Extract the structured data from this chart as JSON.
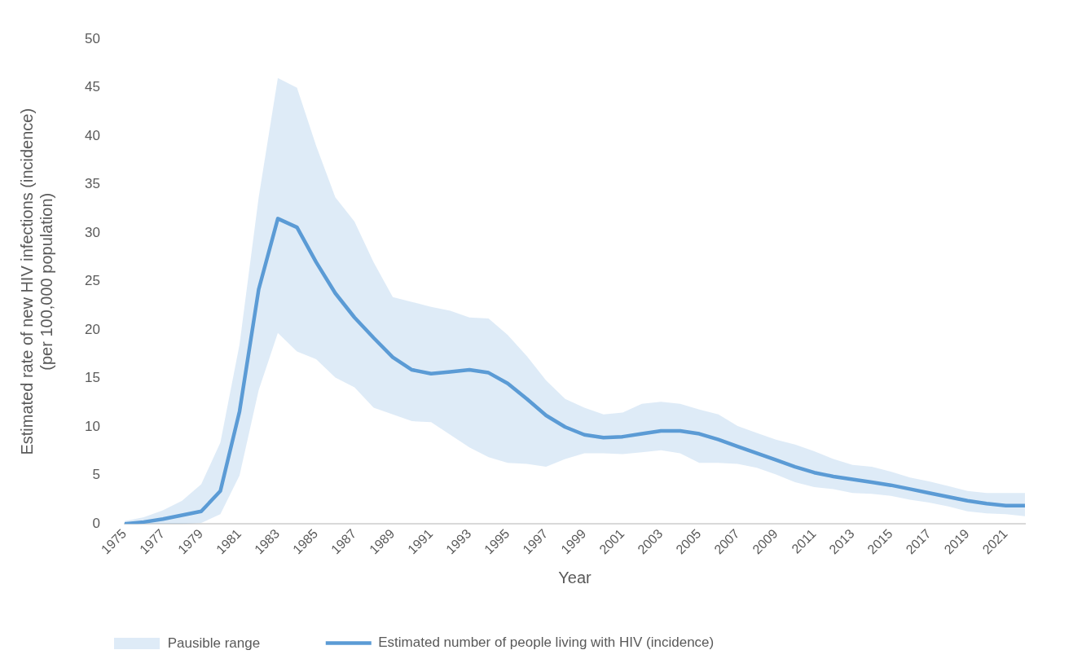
{
  "chart_data": {
    "type": "line",
    "ylabel": "Estimated rate of new HIV infections (incidence)\n(per 100,000 population)",
    "xlabel": "Year",
    "x": [
      1975,
      1976,
      1977,
      1978,
      1979,
      1980,
      1981,
      1982,
      1983,
      1984,
      1985,
      1986,
      1987,
      1988,
      1989,
      1990,
      1991,
      1992,
      1993,
      1994,
      1995,
      1996,
      1997,
      1998,
      1999,
      2000,
      2001,
      2002,
      2003,
      2004,
      2005,
      2006,
      2007,
      2008,
      2009,
      2010,
      2011,
      2012,
      2013,
      2014,
      2015,
      2016,
      2017,
      2018,
      2019,
      2020,
      2021,
      2022
    ],
    "xlim": [
      1975,
      2022
    ],
    "xticks": [
      1975,
      1977,
      1979,
      1981,
      1983,
      1985,
      1987,
      1989,
      1991,
      1993,
      1995,
      1997,
      1999,
      2001,
      2003,
      2005,
      2007,
      2009,
      2011,
      2013,
      2015,
      2017,
      2019,
      2021
    ],
    "ylim": [
      0,
      50
    ],
    "yticks": [
      0,
      5,
      10,
      15,
      20,
      25,
      30,
      35,
      40,
      45,
      50
    ],
    "grid": false,
    "legend": "bottom",
    "annotations": [
      "Pausible range"
    ],
    "series": [
      {
        "name": "Estimated number of people living with HIV (incidence)",
        "type": "line",
        "color": "#5b9bd5",
        "line_style": "solid",
        "marker": "none",
        "values": [
          0,
          0.2,
          0.5,
          0.9,
          1.3,
          3.4,
          11.6,
          24.2,
          31.5,
          30.6,
          27.0,
          23.8,
          21.3,
          19.2,
          17.2,
          15.9,
          15.5,
          15.7,
          15.9,
          15.6,
          14.5,
          12.9,
          11.2,
          10.0,
          9.2,
          8.9,
          9.0,
          9.3,
          9.6,
          9.6,
          9.3,
          8.7,
          8.0,
          7.3,
          6.6,
          5.9,
          5.3,
          4.9,
          4.6,
          4.3,
          4.0,
          3.6,
          3.2,
          2.8,
          2.4,
          2.1,
          1.9,
          1.9
        ],
        "lower": [
          0,
          0,
          0,
          0,
          0.1,
          1.0,
          5.0,
          13.8,
          19.7,
          17.8,
          17.0,
          15.1,
          14.1,
          12.0,
          11.3,
          10.6,
          10.5,
          9.2,
          7.9,
          6.9,
          6.3,
          6.2,
          5.9,
          6.7,
          7.3,
          7.3,
          7.2,
          7.4,
          7.6,
          7.3,
          6.3,
          6.3,
          6.2,
          5.8,
          5.1,
          4.3,
          3.8,
          3.6,
          3.2,
          3.1,
          2.9,
          2.5,
          2.2,
          1.8,
          1.3,
          1.1,
          1.0,
          0.8
        ],
        "upper": [
          0.3,
          0.7,
          1.4,
          2.4,
          4.1,
          8.4,
          18.5,
          33.7,
          46.0,
          45.0,
          39.0,
          33.7,
          31.2,
          27.0,
          23.4,
          22.9,
          22.4,
          22.0,
          21.3,
          21.2,
          19.5,
          17.3,
          14.8,
          12.9,
          12.0,
          11.3,
          11.5,
          12.4,
          12.6,
          12.4,
          11.8,
          11.3,
          10.1,
          9.4,
          8.7,
          8.2,
          7.5,
          6.7,
          6.1,
          5.9,
          5.4,
          4.8,
          4.4,
          3.9,
          3.4,
          3.2,
          3.2,
          3.2
        ]
      }
    ]
  }
}
